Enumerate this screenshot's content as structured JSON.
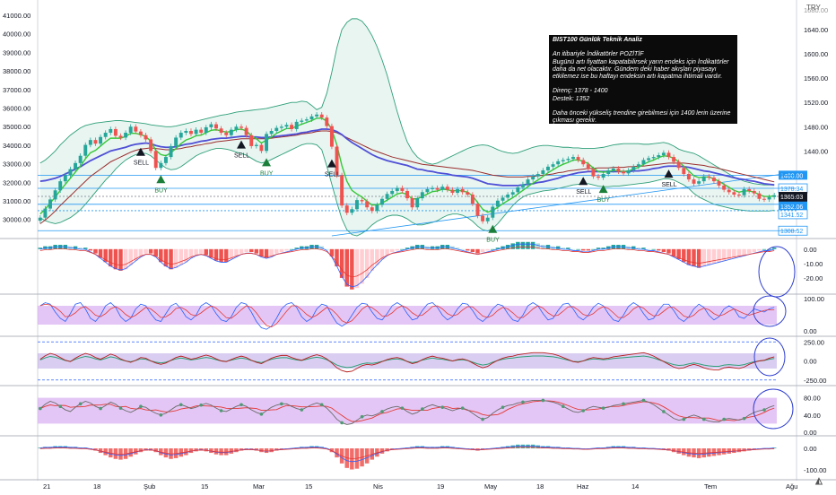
{
  "header": {
    "currency": "TRY"
  },
  "colors": {
    "up": "#26a69a",
    "down": "#ef5350",
    "bb": "#2e9f78",
    "bb_fill": "#e8f5f1",
    "ema_fast": "#37c837",
    "ema_mid": "#4f4fd6",
    "ema_slow": "#9c2d2d",
    "hline": "#2196f3",
    "band_fill": "#d9b3f2",
    "annotation_circle": "#2f3fd0",
    "note_bg": "#0b0b0b"
  },
  "left_axis": {
    "labels": [
      "41000.00",
      "40000.00",
      "39000.00",
      "38000.00",
      "37000.00",
      "36000.00",
      "35000.00",
      "34000.00",
      "33000.00",
      "32000.00",
      "31000.00",
      "30000.00"
    ]
  },
  "right_axis": {
    "top_label": "1680.00",
    "labels": [
      "1640.00",
      "1600.00",
      "1560.00",
      "1520.00",
      "1480.00",
      "1440.00"
    ],
    "price_tags": [
      {
        "value": "1400.00",
        "style": "blue"
      },
      {
        "value": "1378.34",
        "style": "outline"
      },
      {
        "value": "1365.03",
        "style": "dark"
      },
      {
        "value": "04:47:54",
        "style": "dark"
      },
      {
        "value": "1352.06",
        "style": "blue"
      },
      {
        "value": "1341.52",
        "style": "outline"
      },
      {
        "value": "1308.52",
        "style": "outline"
      }
    ]
  },
  "signals": [
    {
      "type": "SELL",
      "label": "SELL"
    },
    {
      "type": "BUY",
      "label": "BUY"
    },
    {
      "type": "SELL",
      "label": "SELL"
    },
    {
      "type": "BUY",
      "label": "BUY"
    },
    {
      "type": "SELL",
      "label": "SELL"
    },
    {
      "type": "BUY",
      "label": "BUY"
    },
    {
      "type": "SELL",
      "label": "SELL"
    },
    {
      "type": "BUY",
      "label": "BUY"
    },
    {
      "type": "SELL",
      "label": "SELL"
    }
  ],
  "note": {
    "title": "BIST100 Günlük Teknik Analiz",
    "line1": "An itibariyle İndikatörler POZİTİF",
    "line2": "Bugünü artı fiyattan kapatabilirsek yarın endeks için İndikatörler daha da net olacaktır. Gündem deki haber akışları piyasayı etkilemez ise bu haftayı endeksin artı kapatma ihtimali vardır.",
    "line3": "Direnç: 1378 - 1400",
    "line4": "Destek: 1352",
    "line5": "Daha önceki yükseliş trendine girebilmesi için 1400 lerin üzerine çıkması gerekir."
  },
  "panels": {
    "macd": {
      "labels": [
        "0.00",
        "-10.00",
        "-20.00"
      ]
    },
    "stoch": {
      "labels": [
        "100.00",
        "0.00"
      ]
    },
    "cci": {
      "labels": [
        "250.00",
        "0.00",
        "-250.00"
      ]
    },
    "rsi": {
      "labels": [
        "80.00",
        "40.00",
        "0.00"
      ]
    },
    "osc": {
      "labels": [
        "0.00",
        "-100.00"
      ]
    }
  },
  "time_axis": {
    "labels": [
      "21",
      "18",
      "Şub",
      "15",
      "Mar",
      "15",
      "Nis",
      "19",
      "May",
      "18",
      "Haz",
      "14",
      "Tem",
      "Ağu"
    ]
  },
  "chart_data": {
    "type": "candlestick",
    "symbol_panel": "BIST100 daily",
    "ylim": [
      1300,
      1680
    ],
    "close": [
      1330,
      1345,
      1360,
      1375,
      1390,
      1400,
      1410,
      1420,
      1432,
      1450,
      1458,
      1452,
      1463,
      1470,
      1476,
      1465,
      1462,
      1470,
      1480,
      1472,
      1466,
      1459,
      1440,
      1412,
      1420,
      1430,
      1448,
      1462,
      1470,
      1473,
      1468,
      1475,
      1470,
      1479,
      1484,
      1477,
      1470,
      1466,
      1475,
      1480,
      1478,
      1466,
      1448,
      1450,
      1440,
      1468,
      1473,
      1478,
      1480,
      1483,
      1476,
      1488,
      1490,
      1492,
      1497,
      1500,
      1495,
      1481,
      1447,
      1400,
      1350,
      1338,
      1344,
      1359,
      1357,
      1347,
      1341,
      1351,
      1361,
      1369,
      1374,
      1379,
      1374,
      1362,
      1347,
      1362,
      1372,
      1377,
      1379,
      1376,
      1381,
      1376,
      1371,
      1377,
      1372,
      1368,
      1353,
      1333,
      1324,
      1330,
      1348,
      1358,
      1363,
      1368,
      1372,
      1380,
      1385,
      1393,
      1398,
      1402,
      1408,
      1414,
      1418,
      1423,
      1425,
      1427,
      1430,
      1425,
      1418,
      1410,
      1398,
      1396,
      1402,
      1408,
      1411,
      1406,
      1403,
      1408,
      1414,
      1418,
      1425,
      1428,
      1430,
      1433,
      1437,
      1430,
      1422,
      1412,
      1402,
      1393,
      1386,
      1390,
      1398,
      1396,
      1390,
      1383,
      1376,
      1372,
      1368,
      1367,
      1377,
      1374,
      1370,
      1361,
      1360,
      1364,
      1367
    ],
    "bb_upper": [
      1420,
      1425,
      1432,
      1440,
      1450,
      1458,
      1466,
      1472,
      1478,
      1482,
      1484,
      1486,
      1487,
      1488,
      1489,
      1490,
      1490,
      1489,
      1488,
      1487,
      1486,
      1485,
      1483,
      1482,
      1481,
      1480,
      1480,
      1481,
      1483,
      1485,
      1487,
      1489,
      1491,
      1493,
      1495,
      1497,
      1499,
      1500,
      1502,
      1504,
      1505,
      1506,
      1507,
      1508,
      1509,
      1510,
      1512,
      1514,
      1516,
      1518,
      1520,
      1520,
      1522,
      1521,
      1515,
      1508,
      1512,
      1535,
      1570,
      1610,
      1640,
      1652,
      1658,
      1658,
      1654,
      1644,
      1630,
      1612,
      1590,
      1565,
      1535,
      1505,
      1478,
      1455,
      1440,
      1430,
      1424,
      1420,
      1418,
      1420,
      1424,
      1428,
      1432,
      1436,
      1440,
      1444,
      1447,
      1449,
      1450,
      1449,
      1446,
      1442,
      1439,
      1437,
      1436,
      1437,
      1440,
      1443,
      1446,
      1448,
      1449,
      1449,
      1448,
      1447,
      1446,
      1446,
      1445,
      1445,
      1444,
      1444,
      1444,
      1445,
      1446,
      1448,
      1450,
      1451,
      1452,
      1452,
      1452,
      1452,
      1451,
      1451,
      1452,
      1453,
      1454,
      1452,
      1448,
      1443,
      1440,
      1438,
      1436,
      1432,
      1427,
      1422,
      1417,
      1412,
      1407,
      1402,
      1397,
      1394,
      1390,
      1388,
      1386,
      1385,
      1384,
      1384,
      1384
    ],
    "bb_lower": [
      1330,
      1325,
      1322,
      1320,
      1322,
      1326,
      1330,
      1336,
      1343,
      1352,
      1362,
      1372,
      1382,
      1392,
      1400,
      1410,
      1418,
      1425,
      1430,
      1434,
      1436,
      1436,
      1432,
      1425,
      1418,
      1412,
      1409,
      1410,
      1414,
      1420,
      1426,
      1432,
      1436,
      1439,
      1442,
      1444,
      1444,
      1443,
      1441,
      1438,
      1436,
      1433,
      1428,
      1423,
      1420,
      1422,
      1426,
      1430,
      1434,
      1438,
      1442,
      1446,
      1450,
      1452,
      1452,
      1450,
      1442,
      1415,
      1385,
      1355,
      1328,
      1310,
      1302,
      1300,
      1304,
      1310,
      1318,
      1324,
      1328,
      1332,
      1334,
      1334,
      1332,
      1328,
      1322,
      1318,
      1318,
      1320,
      1322,
      1325,
      1330,
      1334,
      1336,
      1336,
      1334,
      1330,
      1324,
      1316,
      1310,
      1308,
      1312,
      1320,
      1330,
      1340,
      1350,
      1358,
      1364,
      1368,
      1370,
      1372,
      1374,
      1375,
      1376,
      1378,
      1380,
      1382,
      1384,
      1385,
      1386,
      1386,
      1384,
      1382,
      1381,
      1381,
      1382,
      1382,
      1383,
      1384,
      1385,
      1386,
      1387,
      1388,
      1390,
      1392,
      1394,
      1394,
      1392,
      1388,
      1384,
      1378,
      1370,
      1364,
      1360,
      1356,
      1352,
      1350,
      1348,
      1346,
      1344,
      1343,
      1342,
      1341,
      1341,
      1341,
      1341,
      1341,
      1342
    ],
    "ema_fast": [
      1336,
      1344,
      1354,
      1364,
      1375,
      1385,
      1395,
      1405,
      1415,
      1427,
      1437,
      1441,
      1448,
      1455,
      1461,
      1461,
      1461,
      1464,
      1469,
      1469,
      1467,
      1464,
      1456,
      1441,
      1434,
      1432,
      1437,
      1444,
      1452,
      1458,
      1461,
      1465,
      1466,
      1470,
      1474,
      1475,
      1473,
      1471,
      1472,
      1475,
      1476,
      1473,
      1465,
      1460,
      1453,
      1458,
      1463,
      1469,
      1473,
      1477,
      1477,
      1481,
      1484,
      1487,
      1490,
      1494,
      1494,
      1489,
      1475,
      1450,
      1416,
      1390,
      1375,
      1369,
      1364,
      1357,
      1351,
      1351,
      1354,
      1359,
      1364,
      1369,
      1371,
      1368,
      1361,
      1361,
      1365,
      1369,
      1373,
      1374,
      1377,
      1376,
      1374,
      1375,
      1374,
      1372,
      1366,
      1355,
      1344,
      1339,
      1342,
      1347,
      1353,
      1358,
      1363,
      1369,
      1375,
      1381,
      1387,
      1392,
      1398,
      1404,
      1409,
      1414,
      1418,
      1421,
      1425,
      1425,
      1423,
      1419,
      1412,
      1406,
      1405,
      1406,
      1408,
      1407,
      1406,
      1407,
      1410,
      1413,
      1418,
      1422,
      1425,
      1429,
      1432,
      1431,
      1428,
      1422,
      1415,
      1407,
      1399,
      1396,
      1397,
      1397,
      1394,
      1390,
      1385,
      1380,
      1375,
      1372,
      1374,
      1374,
      1372,
      1368,
      1365,
      1365,
      1366
    ],
    "ema_mid": [
      1390,
      1391,
      1393,
      1395,
      1398,
      1402,
      1406,
      1410,
      1414,
      1419,
      1424,
      1428,
      1432,
      1436,
      1440,
      1442,
      1444,
      1446,
      1449,
      1451,
      1452,
      1453,
      1452,
      1449,
      1447,
      1446,
      1446,
      1447,
      1449,
      1451,
      1452,
      1454,
      1456,
      1457,
      1459,
      1460,
      1461,
      1461,
      1462,
      1463,
      1464,
      1464,
      1463,
      1463,
      1462,
      1462,
      1463,
      1464,
      1465,
      1466,
      1467,
      1468,
      1470,
      1471,
      1473,
      1474,
      1476,
      1476,
      1475,
      1472,
      1467,
      1460,
      1454,
      1449,
      1444,
      1439,
      1434,
      1430,
      1427,
      1424,
      1422,
      1420,
      1418,
      1416,
      1413,
      1410,
      1409,
      1407,
      1406,
      1404,
      1403,
      1402,
      1400,
      1399,
      1398,
      1397,
      1395,
      1392,
      1389,
      1386,
      1385,
      1384,
      1383,
      1383,
      1383,
      1383,
      1384,
      1385,
      1386,
      1388,
      1389,
      1391,
      1393,
      1395,
      1398,
      1400,
      1402,
      1404,
      1405,
      1406,
      1406,
      1406,
      1406,
      1406,
      1406,
      1406,
      1406,
      1406,
      1407,
      1407,
      1408,
      1409,
      1411,
      1412,
      1414,
      1415,
      1415,
      1415,
      1414,
      1413,
      1411,
      1409,
      1407,
      1406,
      1404,
      1402,
      1400,
      1398,
      1396,
      1394,
      1393,
      1391,
      1390,
      1388,
      1386,
      1385,
      1384
    ],
    "ema_slow": [
      1320,
      1326,
      1333,
      1341,
      1350,
      1358,
      1366,
      1374,
      1382,
      1390,
      1398,
      1404,
      1410,
      1416,
      1422,
      1426,
      1430,
      1434,
      1438,
      1441,
      1443,
      1444,
      1445,
      1444,
      1443,
      1442,
      1442,
      1443,
      1444,
      1446,
      1447,
      1449,
      1450,
      1452,
      1453,
      1455,
      1456,
      1457,
      1458,
      1459,
      1460,
      1460,
      1460,
      1460,
      1460,
      1460,
      1461,
      1462,
      1463,
      1464,
      1465,
      1466,
      1468,
      1469,
      1470,
      1472,
      1473,
      1473,
      1472,
      1470,
      1466,
      1462,
      1458,
      1454,
      1450,
      1446,
      1442,
      1439,
      1436,
      1433,
      1430,
      1428,
      1426,
      1424,
      1422,
      1420,
      1418,
      1417,
      1416,
      1415,
      1414,
      1413,
      1412,
      1411,
      1410,
      1409,
      1408,
      1406,
      1404,
      1402,
      1400,
      1399,
      1398,
      1397,
      1397,
      1397,
      1397,
      1398,
      1398,
      1399,
      1400,
      1401,
      1402,
      1404,
      1405,
      1407,
      1408,
      1409,
      1410,
      1411,
      1411,
      1412,
      1412,
      1412,
      1413,
      1413,
      1413,
      1414,
      1414,
      1415,
      1415,
      1416,
      1417,
      1418,
      1419,
      1420,
      1420,
      1420,
      1420,
      1419,
      1418,
      1417,
      1416,
      1414,
      1413,
      1411,
      1409,
      1407,
      1405,
      1403,
      1401,
      1399,
      1397,
      1395,
      1393,
      1391,
      1389
    ],
    "levels": [
      1400,
      1378.34,
      1365.03,
      1352.06,
      1341.52,
      1308.52
    ],
    "macd_hist": [
      1,
      2,
      2,
      3,
      3,
      3,
      2,
      2,
      1,
      1,
      -1,
      -3,
      -6,
      -9,
      -12,
      -14,
      -15,
      -14,
      -11,
      -8,
      -5,
      -3,
      -3,
      -5,
      -9,
      -12,
      -14,
      -13,
      -11,
      -9,
      -6,
      -4,
      -3,
      -4,
      -6,
      -8,
      -9,
      -9,
      -7,
      -5,
      -3,
      -2,
      -2,
      -3,
      -5,
      -6,
      -5,
      -3,
      -2,
      -1,
      0,
      1,
      2,
      2,
      3,
      3,
      2,
      0,
      -5,
      -12,
      -20,
      -26,
      -28,
      -27,
      -24,
      -20,
      -15,
      -11,
      -7,
      -4,
      -2,
      -1,
      0,
      1,
      2,
      3,
      3,
      2,
      2,
      2,
      3,
      3,
      2,
      1,
      0,
      -1,
      -2,
      -3,
      -2,
      -1,
      0,
      1,
      2,
      3,
      4,
      5,
      5,
      5,
      5,
      4,
      3,
      3,
      2,
      2,
      1,
      1,
      0,
      0,
      -1,
      -1,
      0,
      1,
      1,
      2,
      3,
      3,
      3,
      2,
      2,
      1,
      1,
      0,
      0,
      -1,
      -2,
      -3,
      -5,
      -7,
      -9,
      -11,
      -12,
      -13,
      -12,
      -11,
      -10,
      -9,
      -8,
      -7,
      -6,
      -5,
      -4,
      -3,
      -2,
      -1,
      0,
      0,
      1
    ],
    "stoch_k": [
      80,
      90,
      85,
      60,
      40,
      30,
      55,
      85,
      90,
      70,
      40,
      30,
      50,
      80,
      90,
      75,
      45,
      30,
      40,
      70,
      85,
      80,
      55,
      35,
      30,
      55,
      80,
      88,
      70,
      45,
      35,
      50,
      80,
      90,
      80,
      55,
      35,
      30,
      45,
      75,
      90,
      85,
      60,
      30,
      10,
      5,
      15,
      40,
      70,
      85,
      90,
      75,
      45,
      30,
      40,
      70,
      85,
      80,
      50,
      25,
      15,
      25,
      50,
      75,
      88,
      85,
      60,
      40,
      35,
      55,
      80,
      90,
      80,
      55,
      35,
      40,
      65,
      85,
      90,
      75,
      50,
      35,
      45,
      70,
      88,
      85,
      65,
      40,
      30,
      45,
      70,
      85,
      80,
      55,
      35,
      30,
      50,
      80,
      90,
      80,
      55,
      35,
      40,
      65,
      85,
      88,
      70,
      45,
      35,
      50,
      75,
      88,
      80,
      55,
      35,
      30,
      50,
      78,
      90,
      80,
      55,
      35,
      40,
      65,
      85,
      85,
      65,
      40,
      30,
      45,
      70,
      85,
      75,
      50,
      35,
      45,
      70,
      80,
      70,
      45,
      40,
      55,
      70,
      65,
      60,
      70,
      75
    ],
    "rsi": [
      55,
      65,
      72,
      68,
      60,
      52,
      48,
      58,
      66,
      72,
      68,
      60,
      55,
      62,
      70,
      65,
      56,
      50,
      46,
      52,
      60,
      58,
      50,
      44,
      40,
      44,
      52,
      60,
      64,
      60,
      55,
      58,
      63,
      67,
      63,
      56,
      50,
      48,
      54,
      60,
      64,
      60,
      52,
      46,
      42,
      50,
      58,
      63,
      66,
      66,
      60,
      55,
      52,
      58,
      64,
      68,
      64,
      56,
      44,
      30,
      22,
      18,
      20,
      28,
      36,
      40,
      38,
      42,
      48,
      54,
      58,
      60,
      56,
      48,
      42,
      46,
      54,
      60,
      64,
      60,
      58,
      54,
      50,
      54,
      56,
      52,
      44,
      36,
      30,
      34,
      44,
      52,
      58,
      62,
      64,
      68,
      70,
      72,
      74,
      74,
      74,
      72,
      70,
      66,
      60,
      54,
      48,
      46,
      50,
      56,
      60,
      58,
      56,
      58,
      62,
      64,
      66,
      68,
      70,
      72,
      74,
      70,
      64,
      56,
      48,
      40,
      32,
      28,
      30,
      36,
      40,
      36,
      30,
      26,
      24,
      24,
      30,
      32,
      30,
      28,
      32,
      40,
      46,
      50,
      52,
      58,
      62
    ]
  }
}
